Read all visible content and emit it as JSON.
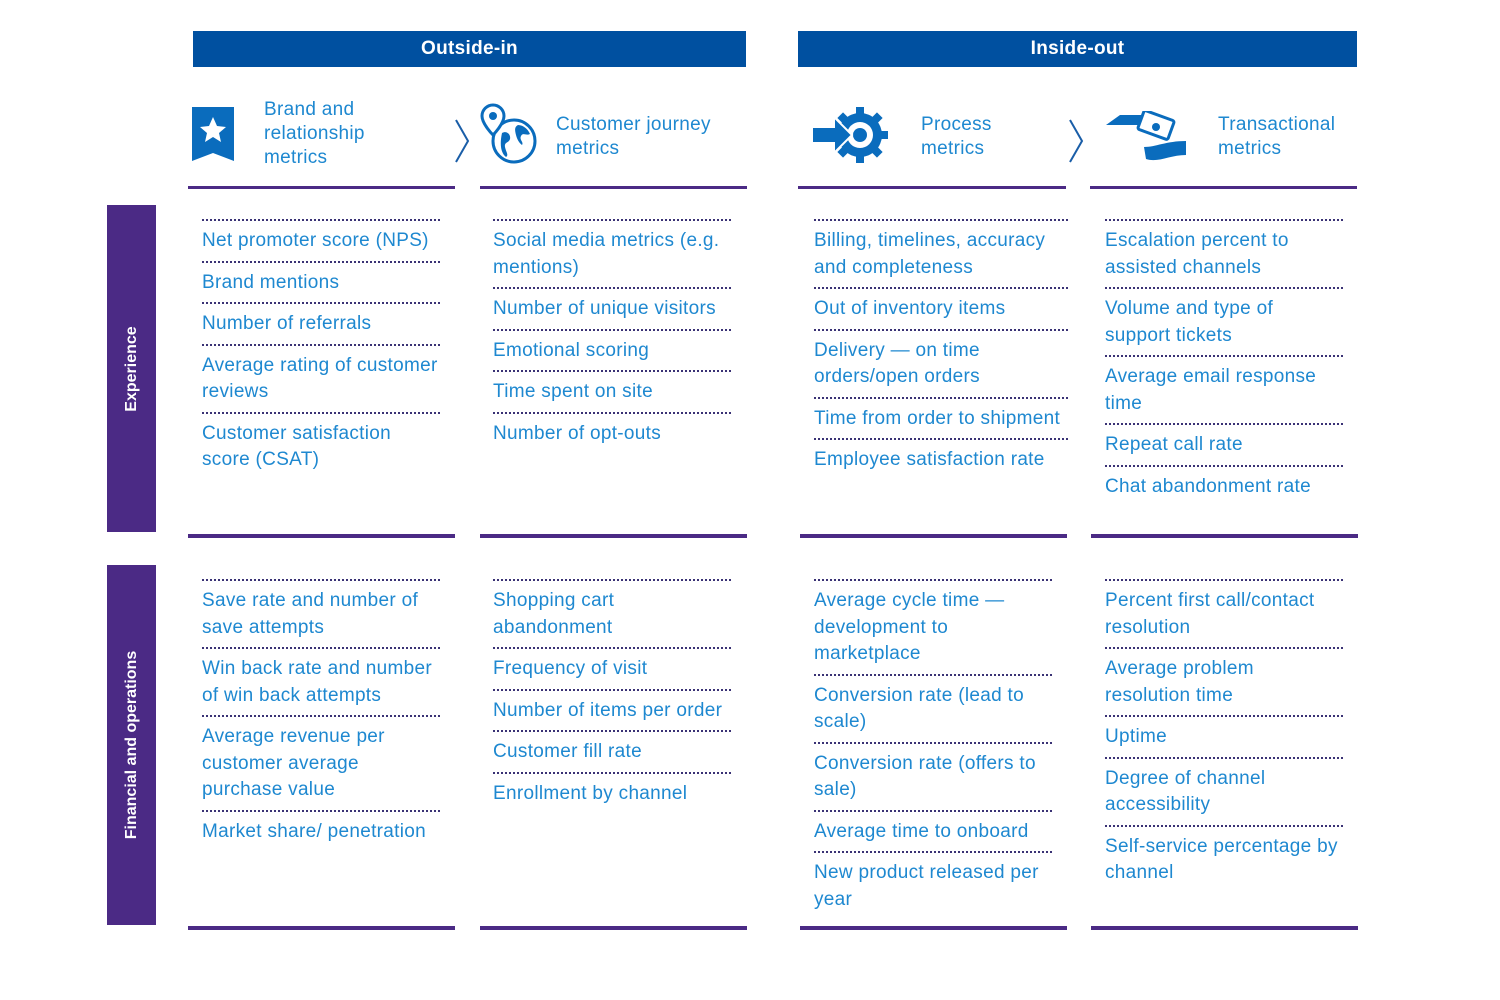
{
  "headers": {
    "outside_in": "Outside-in",
    "inside_out": "Inside-out"
  },
  "categories": [
    {
      "label_lines": [
        "Brand and",
        "relationship",
        "metrics"
      ],
      "icon": "star-ribbon-icon"
    },
    {
      "label_lines": [
        "Customer journey",
        "metrics"
      ],
      "icon": "globe-pin-icon"
    },
    {
      "label_lines": [
        "Process",
        "metrics"
      ],
      "icon": "gear-arrow-icon"
    },
    {
      "label_lines": [
        "Transactional",
        "metrics"
      ],
      "icon": "hands-money-icon"
    }
  ],
  "rows": {
    "experience": "Experience",
    "financial": "Financial and operations"
  },
  "experience": [
    [
      "Net promoter score (NPS)",
      "Brand mentions",
      "Number of referrals",
      "Average rating of customer reviews",
      "Customer satisfaction score (CSAT)"
    ],
    [
      "Social media metrics (e.g. mentions)",
      "Number of unique visitors",
      "Emotional scoring",
      "Time spent on site",
      "Number of opt-outs"
    ],
    [
      "Billing, timelines, accuracy and completeness",
      "Out of inventory items",
      "Delivery — on time orders/open orders",
      "Time from order to shipment",
      "Employee satisfaction rate"
    ],
    [
      "Escalation percent to assisted channels",
      "Volume and type of support tickets",
      "Average email response time",
      "Repeat call rate",
      "Chat abandonment rate"
    ]
  ],
  "financial": [
    [
      "Save rate and number of save attempts",
      "Win back rate and number of win back attempts",
      "Average revenue per customer average purchase value",
      "Market share/ penetration"
    ],
    [
      "Shopping cart abandonment",
      "Frequency of visit",
      "Number of items per order",
      "Customer fill rate",
      "Enrollment by channel"
    ],
    [
      "Average cycle time — development to marketplace",
      "Conversion rate (lead to scale)",
      "Conversion rate (offers to sale)",
      "Average time to onboard",
      "New product released per year"
    ],
    [
      "Percent first call/contact resolution",
      "Average problem resolution time",
      "Uptime",
      "Degree of channel accessibility",
      "Self-service percentage by channel"
    ]
  ],
  "colors": {
    "header_blue": "#0050a0",
    "purple": "#4b2a85",
    "text_blue": "#1e88d0"
  }
}
